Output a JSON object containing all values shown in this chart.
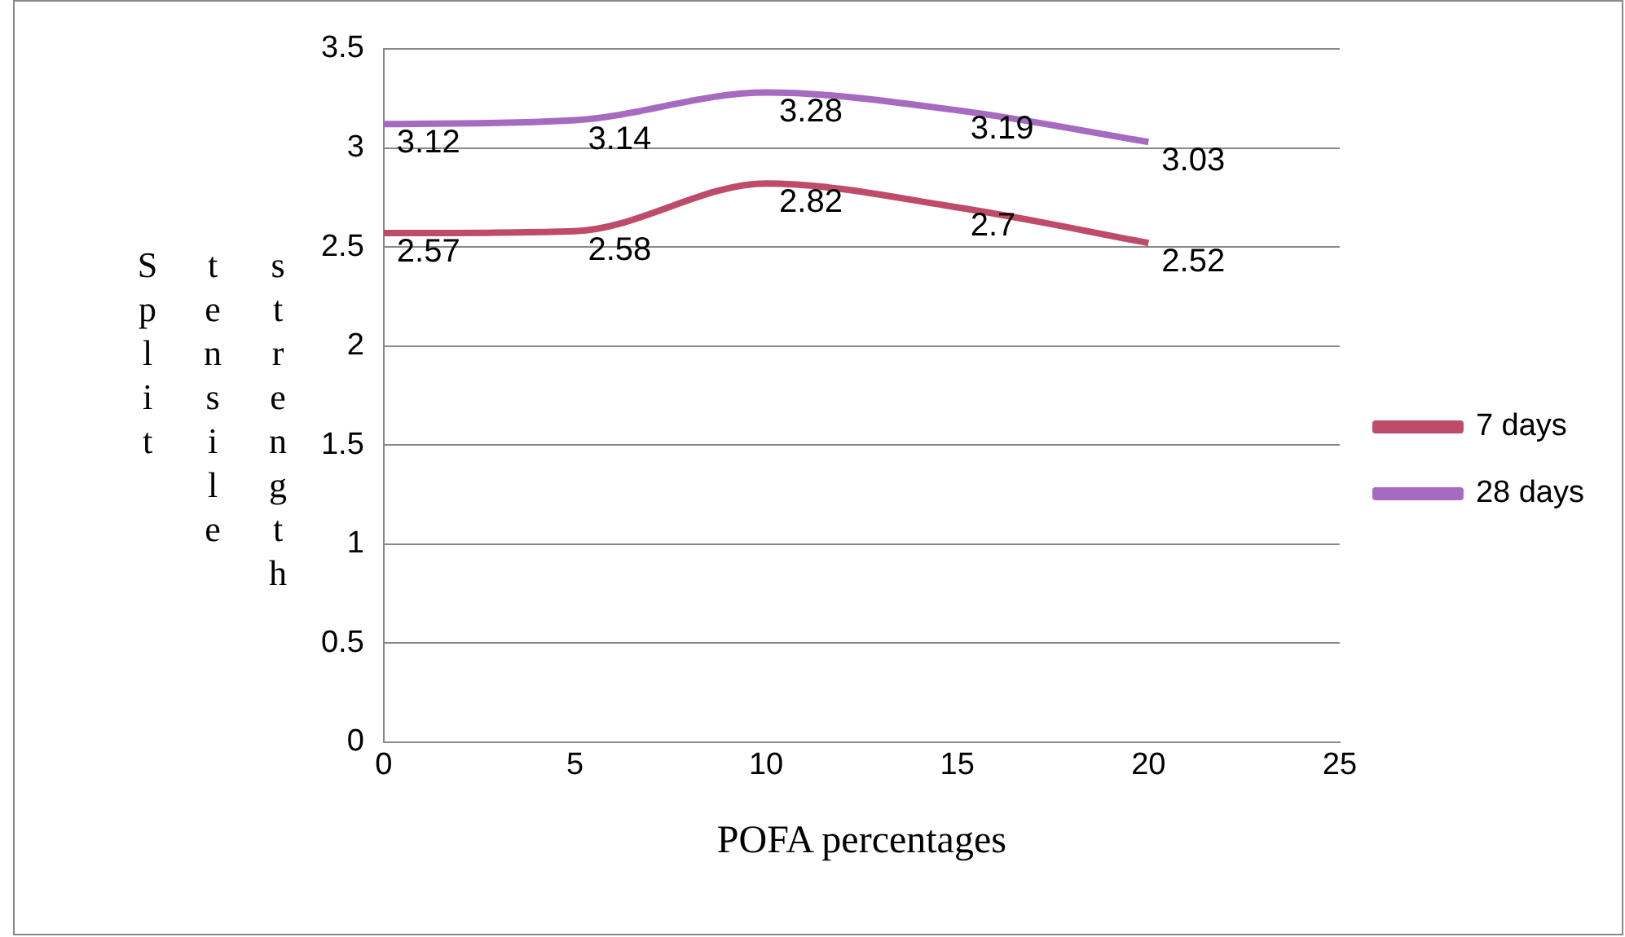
{
  "chart_data": {
    "type": "line",
    "xlabel": "POFA percentages",
    "ylabel": "Split tensile strength",
    "x": [
      0,
      5,
      10,
      15,
      20
    ],
    "series": [
      {
        "name": "7 days",
        "color": "#be4b6a",
        "values": [
          2.57,
          2.58,
          2.82,
          2.7,
          2.52
        ]
      },
      {
        "name": "28 days",
        "color": "#a66bc0",
        "values": [
          3.12,
          3.14,
          3.28,
          3.19,
          3.03
        ]
      }
    ],
    "xlim": [
      0,
      25
    ],
    "xticks": [
      0,
      5,
      10,
      15,
      20,
      25
    ],
    "ylim": [
      0,
      3.5
    ],
    "yticks": [
      0,
      0.5,
      1,
      1.5,
      2,
      2.5,
      3,
      3.5
    ],
    "grid": "y",
    "legend": "right",
    "marker": "none",
    "line_style": "solid",
    "data_labels": true
  }
}
